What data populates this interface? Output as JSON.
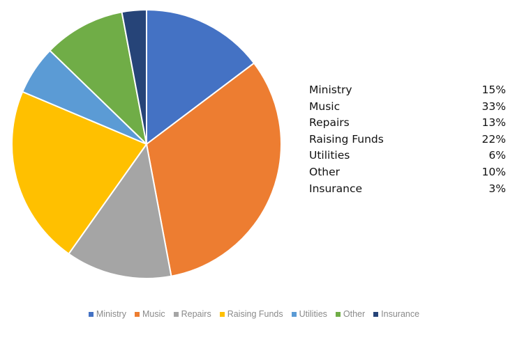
{
  "chart_data": {
    "type": "pie",
    "title": "",
    "slices": [
      {
        "label": "Ministry",
        "value": 15,
        "pct_label": "15%",
        "color": "#4472C4"
      },
      {
        "label": "Music",
        "value": 33,
        "pct_label": "33%",
        "color": "#ED7D31"
      },
      {
        "label": "Repairs",
        "value": 13,
        "pct_label": "13%",
        "color": "#A5A5A5"
      },
      {
        "label": "Raising Funds",
        "value": 22,
        "pct_label": "22%",
        "color": "#FFC000"
      },
      {
        "label": "Utilities",
        "value": 6,
        "pct_label": "6%",
        "color": "#5B9BD5"
      },
      {
        "label": "Other",
        "value": 10,
        "pct_label": "10%",
        "color": "#70AD47"
      },
      {
        "label": "Insurance",
        "value": 3,
        "pct_label": "3%",
        "color": "#264478"
      }
    ],
    "legend": "bottom",
    "grid": false
  },
  "table": {
    "rows": [
      {
        "label": "Ministry",
        "pct": "15%"
      },
      {
        "label": "Music",
        "pct": "33%"
      },
      {
        "label": "Repairs",
        "pct": "13%"
      },
      {
        "label": "Raising Funds",
        "pct": "22%"
      },
      {
        "label": "Utilities",
        "pct": "6%"
      },
      {
        "label": "Other",
        "pct": "10%"
      },
      {
        "label": "Insurance",
        "pct": "3%"
      }
    ]
  },
  "legend": {
    "items": [
      {
        "label": "Ministry",
        "color": "#4472C4"
      },
      {
        "label": "Music",
        "color": "#ED7D31"
      },
      {
        "label": "Repairs",
        "color": "#A5A5A5"
      },
      {
        "label": "Raising Funds",
        "color": "#FFC000"
      },
      {
        "label": "Utilities",
        "color": "#5B9BD5"
      },
      {
        "label": "Other",
        "color": "#70AD47"
      },
      {
        "label": "Insurance",
        "color": "#264478"
      }
    ]
  }
}
